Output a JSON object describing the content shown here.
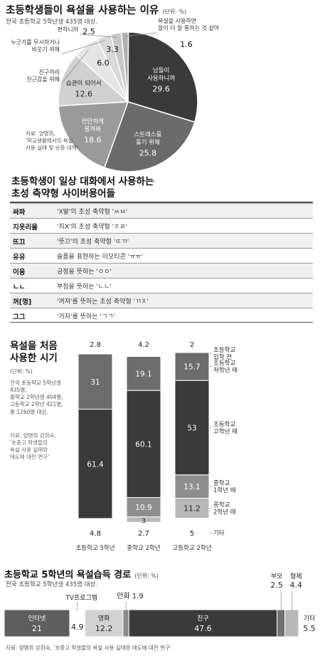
{
  "pie": {
    "title": "초등학생들이 욕설을 사용하는 이유",
    "unit": "(단위: %)",
    "subtitle": "전국 초등학교 5학년생 435명 대상.",
    "source": [
      "자료: 양명희,",
      "'학교생활에서의 욕설",
      "사용 실태 및 순화 대책'"
    ]
  },
  "table": {
    "title_lines": [
      "초등학생이 일상 대화에서 사용하는",
      "초성 축약형 사이버용어들"
    ],
    "rows": [
      {
        "term": "싸파",
        "meaning": "'X발'의 초성 축약형 'ㅆㅂ'"
      },
      {
        "term": "지읏리을",
        "meaning": "'지X'의 초성 축약형 'ㅈㄹ'"
      },
      {
        "term": "뜨끄",
        "meaning": "'뜻끄'의 초성 축약형 'ㄸㄲ'"
      },
      {
        "term": "유유",
        "meaning": "슬픔을 표현하는 이모티콘 'ㅠㅠ'"
      },
      {
        "term": "이응",
        "meaning": "긍정을 뜻하는 'ㅇㅇ'"
      },
      {
        "term": "ㄴㄴ",
        "meaning": "부정을 뜻하는 'ㄴㄴ'"
      },
      {
        "term": "꺼[껑]",
        "meaning": "'꺼져'를 뜻하는 초성 축약형 'ㄲㅈ'"
      },
      {
        "term": "그그",
        "meaning": "'가자'를 뜻하는 'ㄱㄱ'"
      }
    ]
  },
  "stacked": {
    "title_lines": [
      "욕설을 처음",
      "사용한 시기"
    ],
    "unit": "(단위: %)",
    "desc": [
      "전국 초등학교 5학년생",
      "435명,",
      "중학교 2학년생 404명,",
      "고등학교 2학년 421명,",
      "총 1260명 대상."
    ],
    "source": [
      "자료: 양명희 강희숙,",
      "'초중고 학생들의",
      "욕설 사용 실태와",
      "태도에 대한 연구'"
    ],
    "legend": [
      "초등학교 입학 전",
      "초등학교 저학년 때",
      "초등학교 고학년 때",
      "중학교 1학년 때",
      "중학교 2학년 때",
      "기타"
    ]
  },
  "hbar": {
    "title": "초등학교 5학년의 욕설습득 경로",
    "unit": "(단위: %)",
    "subtitle": "전국 초등학교 5학년생 435명 대상.",
    "source": "자료: 양명희 강희숙, '초중고 학생들의 욕설 사용 실태와 태도에 대한 연구'"
  },
  "chart_data": [
    {
      "type": "pie",
      "title": "초등학생들이 욕설을 사용하는 이유",
      "slices": [
        {
          "label": "남들이 사용하니까",
          "value": 29.6,
          "color": "#3a3a3a"
        },
        {
          "label": "스트레스를 풀기 위해",
          "value": 25.8,
          "color": "#6a6a6a"
        },
        {
          "label": "만만하게 볼까봐",
          "value": 18.6,
          "color": "#9a9a9a"
        },
        {
          "label": "습관이 되어서",
          "value": 12.6,
          "color": "#d0d0d0"
        },
        {
          "label": "친구끼리 친근감을 위해",
          "value": 6.0,
          "color": "#e4e4e4"
        },
        {
          "label": "누군가를 무시하거나 비웃기 위해",
          "value": 3.3,
          "color": "#d8d8d8"
        },
        {
          "label": "편하니까",
          "value": 2.5,
          "color": "#c8c8c8"
        },
        {
          "label": "욕설을 사용하면 말이 더 잘 통하는 것 같아",
          "value": 1.6,
          "color": "#b0b0b0"
        }
      ]
    },
    {
      "type": "bar",
      "stacked": true,
      "title": "욕설을 처음 사용한 시기",
      "categories": [
        "초등학교 5학년",
        "중학교 2학년",
        "고등학교 2학년"
      ],
      "series": [
        {
          "name": "초등학교 입학 전",
          "values": [
            2.8,
            4.2,
            2
          ],
          "color": "#ffffff"
        },
        {
          "name": "초등학교 저학년 때",
          "values": [
            31,
            19.1,
            15.7
          ],
          "color": "#6c6c6c"
        },
        {
          "name": "초등학교 고학년 때",
          "values": [
            61.4,
            60.1,
            53
          ],
          "color": "#3a3a3a"
        },
        {
          "name": "중학교 1학년 때",
          "values": [
            null,
            10.9,
            13.1
          ],
          "color": "#8e8e8e"
        },
        {
          "name": "중학교 2학년 때",
          "values": [
            null,
            3,
            11.2
          ],
          "color": "#b8b8b8"
        },
        {
          "name": "기타",
          "values": [
            4.8,
            2.7,
            5
          ],
          "color": "#ffffff"
        }
      ]
    },
    {
      "type": "bar",
      "orientation": "horizontal",
      "stacked": true,
      "title": "초등학교 5학년의 욕설습득 경로",
      "segments": [
        {
          "label": "인터넷",
          "value": 21,
          "color": "#5e5e5e"
        },
        {
          "label": "TV프로그램",
          "value": 4.9,
          "color": "#ffffff"
        },
        {
          "label": "영화",
          "value": 12.2,
          "color": "#d2d2d2"
        },
        {
          "label": "만화",
          "value": 1.9,
          "color": "#8a8a8a"
        },
        {
          "label": "친구",
          "value": 47.6,
          "color": "#3a3a3a"
        },
        {
          "label": "부모",
          "value": 2.5,
          "color": "#707070"
        },
        {
          "label": "형제",
          "value": 4.4,
          "color": "#b8b8b8"
        },
        {
          "label": "기타",
          "value": 5.5,
          "color": "#ffffff"
        }
      ]
    }
  ]
}
